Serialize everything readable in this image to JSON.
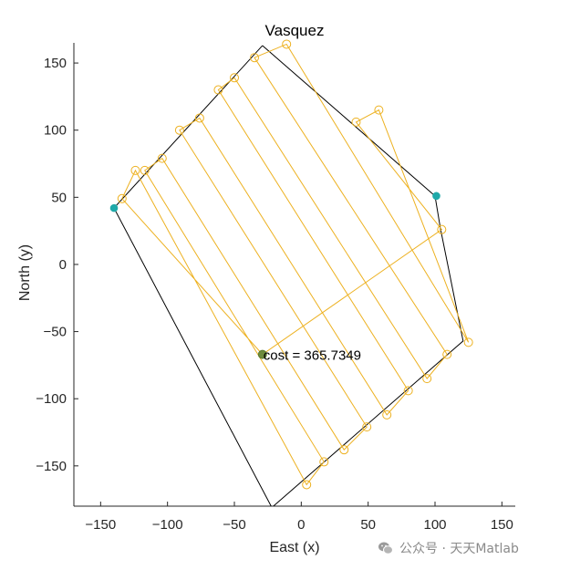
{
  "chart_data": {
    "type": "line",
    "title": "Vasquez",
    "xlabel": "East (x)",
    "ylabel": "North (y)",
    "xlim": [
      -170,
      160
    ],
    "ylim": [
      -180,
      165
    ],
    "xticks": [
      -150,
      -100,
      -50,
      0,
      50,
      100,
      150
    ],
    "yticks": [
      -150,
      -100,
      -50,
      0,
      50,
      100,
      150
    ],
    "grid": false,
    "colors": {
      "boundary": "#000000",
      "path": "#EDB120",
      "vertex_marker": "#1FA9A9",
      "home": "#6E8B3D"
    },
    "boundary": {
      "x": [
        -29,
        100,
        104,
        121,
        -22,
        -140,
        -29
      ],
      "y": [
        163,
        51,
        27,
        -57,
        -181,
        42,
        163
      ]
    },
    "vertices": {
      "x": [
        -140,
        101
      ],
      "y": [
        42,
        51
      ]
    },
    "home": {
      "x": -29,
      "y": -67
    },
    "path": {
      "x": [
        -29,
        -134,
        -124,
        4,
        17,
        -117,
        -104,
        32,
        49,
        -91,
        -76,
        64,
        80,
        -62,
        -50,
        94,
        109,
        -35,
        -11,
        125,
        58,
        41,
        105,
        -29
      ],
      "y": [
        -67,
        49,
        70,
        -164,
        -147,
        70,
        79,
        -138,
        -121,
        100,
        109,
        -112,
        -94,
        130,
        139,
        -85,
        -67,
        154,
        164,
        -58,
        115,
        106,
        26,
        -67
      ]
    },
    "annotation": {
      "text": "cost = 365.7349",
      "x": -29,
      "y": -67
    }
  },
  "watermark": "公众号 · 天天Matlab"
}
